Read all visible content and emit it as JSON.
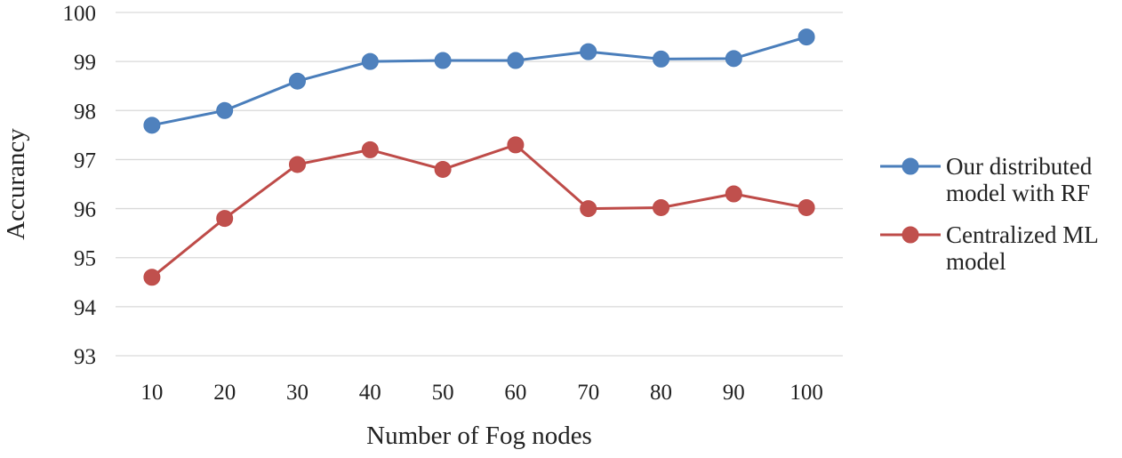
{
  "chart_data": {
    "type": "line",
    "title": "",
    "xlabel": "Number of Fog nodes",
    "ylabel": "Accurancy",
    "categories": [
      "10",
      "20",
      "30",
      "40",
      "50",
      "60",
      "70",
      "80",
      "90",
      "100"
    ],
    "ylim": [
      93,
      100
    ],
    "yticks": [
      "93",
      "94",
      "95",
      "96",
      "97",
      "98",
      "99",
      "100"
    ],
    "grid": true,
    "legend_position": "right",
    "series": [
      {
        "name": "Our distributed model with RF",
        "legend_lines": [
          "Our distributed",
          "model with RF"
        ],
        "color": "#4a7ebb",
        "marker_color": "#4f81bd",
        "values": [
          97.7,
          98.0,
          98.6,
          99.0,
          99.02,
          99.02,
          99.2,
          99.05,
          99.06,
          99.5
        ]
      },
      {
        "name": "Centralized ML model",
        "legend_lines": [
          "Centralized ML",
          "model"
        ],
        "color": "#be4b48",
        "marker_color": "#c0504d",
        "values": [
          94.6,
          95.8,
          96.9,
          97.2,
          96.8,
          97.3,
          96.0,
          96.02,
          96.3,
          96.02
        ]
      }
    ]
  }
}
